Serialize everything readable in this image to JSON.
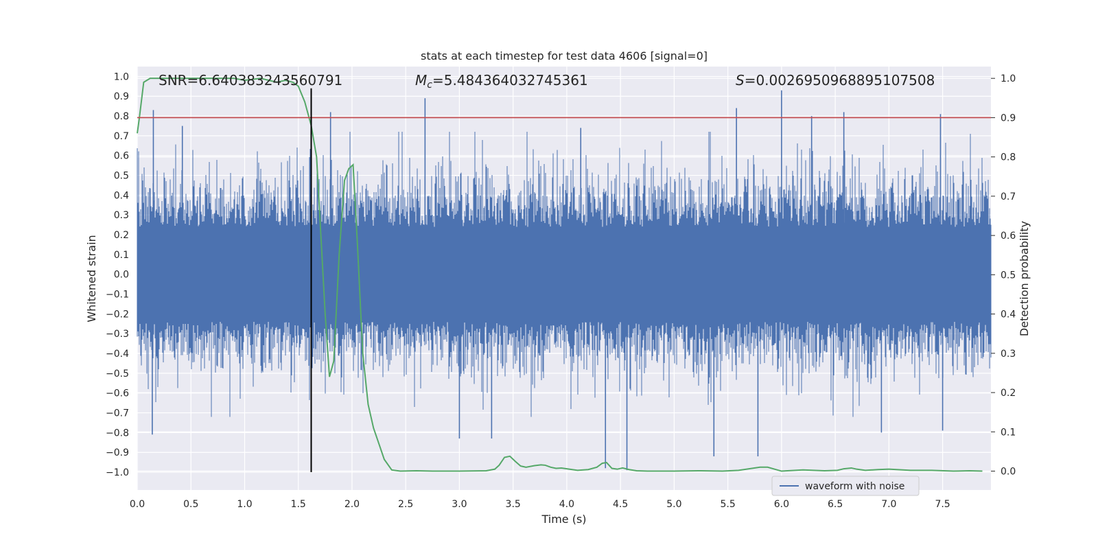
{
  "chart_data": {
    "type": "line",
    "title": "stats at each timestep for test data 4606 [signal=0]",
    "xlabel": "Time (s)",
    "ylabel": "Whitened strain",
    "y2label": "Detection probability",
    "xlim": [
      0.0,
      7.95
    ],
    "ylim": [
      -1.09,
      1.05
    ],
    "y2lim": [
      -0.048,
      1.03
    ],
    "xticks": [
      0.0,
      0.5,
      1.0,
      1.5,
      2.0,
      2.5,
      3.0,
      3.5,
      4.0,
      4.5,
      5.0,
      5.5,
      6.0,
      6.5,
      7.0,
      7.5
    ],
    "xtick_labels": [
      "0.0",
      "0.5",
      "1.0",
      "1.5",
      "2.0",
      "2.5",
      "3.0",
      "3.5",
      "4.0",
      "4.5",
      "5.0",
      "5.5",
      "6.0",
      "6.5",
      "7.0",
      "7.5"
    ],
    "yticks": [
      1.0,
      0.9,
      0.8,
      0.7,
      0.6,
      0.5,
      0.4,
      0.3,
      0.2,
      0.1,
      0.0,
      -0.1,
      -0.2,
      -0.3,
      -0.4,
      -0.5,
      -0.6,
      -0.7,
      -0.8,
      -0.9,
      -1.0
    ],
    "ytick_labels": [
      "1.0",
      "0.9",
      "0.8",
      "0.7",
      "0.6",
      "0.5",
      "0.4",
      "0.3",
      "0.2",
      "0.1",
      "0.0",
      "−0.1",
      "−0.2",
      "−0.3",
      "−0.4",
      "−0.5",
      "−0.6",
      "−0.7",
      "−0.8",
      "−0.9",
      "−1.0"
    ],
    "y2ticks": [
      1.0,
      0.9,
      0.8,
      0.7,
      0.6,
      0.5,
      0.4,
      0.3,
      0.2,
      0.1,
      0.0
    ],
    "y2tick_labels": [
      "1.0",
      "0.9",
      "0.8",
      "0.7",
      "0.6",
      "0.5",
      "0.4",
      "0.3",
      "0.2",
      "0.1",
      "0.0"
    ],
    "grid": true,
    "annotations": {
      "snr": "SNR=6.640383243560791",
      "mc_symbol": "M",
      "mc_sub": "c",
      "mc_value": "=5.484364032745361",
      "s_symbol": "S",
      "s_value": "=0.0026950968895107508"
    },
    "legend": {
      "position": "lower-right",
      "entries": [
        "waveform with noise"
      ]
    },
    "vertical_line_x": 1.62,
    "threshold_probability": 0.9,
    "series": [
      {
        "name": "waveform with noise",
        "axis": "left",
        "style": "noise",
        "t_start": 0.0,
        "t_end": 7.95,
        "envelope_positive_p95": 0.52,
        "envelope_negative_p95": -0.5,
        "peaks": [
          {
            "t": 0.15,
            "v": 0.83
          },
          {
            "t": 0.42,
            "v": 0.75
          },
          {
            "t": 1.8,
            "v": 0.82
          },
          {
            "t": 2.68,
            "v": 0.89
          },
          {
            "t": 4.13,
            "v": 0.74
          },
          {
            "t": 5.58,
            "v": 0.84
          },
          {
            "t": 6.0,
            "v": 0.93
          },
          {
            "t": 6.28,
            "v": 0.8
          },
          {
            "t": 6.58,
            "v": 0.82
          },
          {
            "t": 7.48,
            "v": 0.81
          },
          {
            "t": 0.14,
            "v": -0.81
          },
          {
            "t": 3.0,
            "v": -0.83
          },
          {
            "t": 3.3,
            "v": -0.83
          },
          {
            "t": 4.36,
            "v": -0.98
          },
          {
            "t": 4.56,
            "v": -0.99
          },
          {
            "t": 5.37,
            "v": -0.92
          },
          {
            "t": 5.78,
            "v": -0.92
          },
          {
            "t": 6.93,
            "v": -0.8
          },
          {
            "t": 7.5,
            "v": -0.79
          }
        ]
      },
      {
        "name": "detection probability",
        "axis": "right",
        "color": "#55a868",
        "x": [
          0.0,
          0.02,
          0.06,
          0.12,
          0.2,
          0.35,
          0.5,
          0.7,
          0.9,
          1.0,
          1.15,
          1.3,
          1.38,
          1.45,
          1.5,
          1.56,
          1.62,
          1.67,
          1.71,
          1.75,
          1.79,
          1.83,
          1.88,
          1.93,
          1.97,
          2.01,
          2.05,
          2.1,
          2.15,
          2.2,
          2.25,
          2.3,
          2.37,
          2.45,
          2.6,
          2.75,
          3.0,
          3.25,
          3.33,
          3.37,
          3.42,
          3.47,
          3.52,
          3.57,
          3.62,
          3.7,
          3.76,
          3.8,
          3.85,
          3.9,
          3.95,
          4.0,
          4.1,
          4.2,
          4.28,
          4.33,
          4.37,
          4.42,
          4.47,
          4.52,
          4.58,
          4.65,
          4.75,
          5.0,
          5.25,
          5.45,
          5.6,
          5.8,
          5.87,
          6.0,
          6.2,
          6.4,
          6.52,
          6.58,
          6.65,
          6.7,
          6.78,
          6.9,
          7.0,
          7.2,
          7.4,
          7.6,
          7.75,
          7.87
        ],
        "y": [
          0.86,
          0.9,
          0.99,
          1.0,
          1.0,
          1.0,
          1.0,
          1.0,
          1.0,
          0.995,
          1.0,
          0.99,
          0.995,
          0.99,
          0.98,
          0.94,
          0.88,
          0.8,
          0.6,
          0.4,
          0.24,
          0.28,
          0.55,
          0.74,
          0.77,
          0.78,
          0.58,
          0.3,
          0.17,
          0.11,
          0.07,
          0.03,
          0.003,
          0.0,
          0.001,
          0.0,
          0.0,
          0.001,
          0.005,
          0.015,
          0.035,
          0.038,
          0.025,
          0.013,
          0.01,
          0.014,
          0.016,
          0.015,
          0.01,
          0.007,
          0.008,
          0.006,
          0.002,
          0.004,
          0.01,
          0.02,
          0.022,
          0.007,
          0.005,
          0.008,
          0.004,
          0.001,
          0.0,
          0.0,
          0.001,
          0.0,
          0.002,
          0.01,
          0.01,
          0.0,
          0.003,
          0.001,
          0.002,
          0.006,
          0.008,
          0.005,
          0.002,
          0.004,
          0.005,
          0.002,
          0.002,
          0.0,
          0.001,
          0.0
        ]
      },
      {
        "name": "threshold",
        "axis": "right",
        "color": "#c44e52",
        "value": 0.9
      }
    ]
  }
}
